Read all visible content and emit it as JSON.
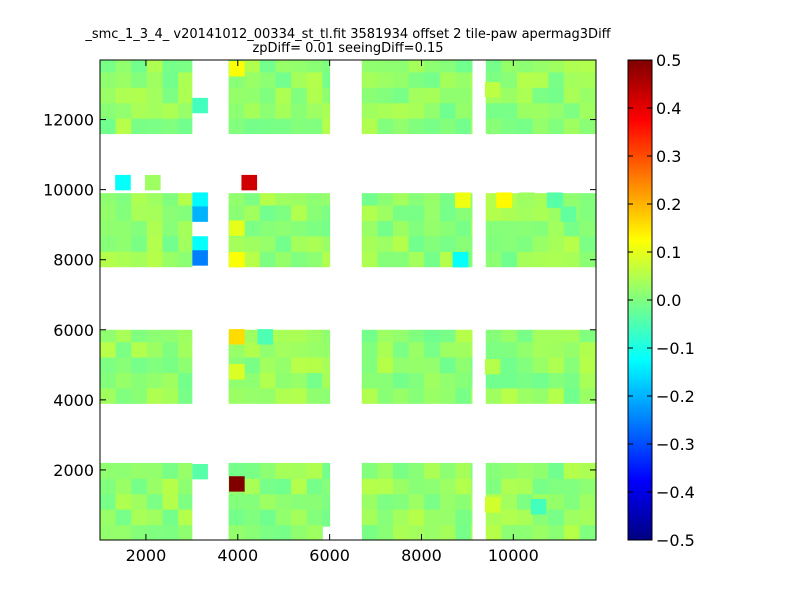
{
  "chart_data": {
    "type": "heatmap",
    "title_line1": "_smc_1_3_4_ v20141012_00334_st_tl.fit 3581934 offset 2 tile-paw apermag3Diff",
    "title_line2": "zpDiff= 0.01 seeingDiff=0.15",
    "xlim": [
      1000,
      11800
    ],
    "ylim": [
      0,
      13700
    ],
    "x_ticks": [
      2000,
      4000,
      6000,
      8000,
      10000
    ],
    "y_ticks": [
      2000,
      4000,
      6000,
      8000,
      10000,
      12000
    ],
    "colorbar": {
      "colormap": "jet",
      "range": [
        -0.5,
        0.5
      ],
      "ticks": [
        0.5,
        0.4,
        0.3,
        0.2,
        0.1,
        0.0,
        -0.1,
        -0.2,
        -0.3,
        -0.4,
        -0.5
      ],
      "tick_labels": [
        "0.5",
        "0.4",
        "0.3",
        "0.2",
        "0.1",
        "0.0",
        "−0.1",
        "−0.2",
        "−0.3",
        "−0.4",
        "−0.5"
      ]
    },
    "cell_size": [
      340,
      440
    ],
    "x_bands": [
      [
        1000,
        3000
      ],
      [
        3000,
        3360
      ],
      [
        3800,
        6000
      ],
      [
        6700,
        9100
      ],
      [
        9400,
        11800
      ]
    ],
    "y_bands": [
      [
        0,
        2200
      ],
      [
        3900,
        6000
      ],
      [
        7800,
        9900
      ],
      [
        11600,
        13700
      ]
    ],
    "special_cells": [
      {
        "x": 1500,
        "y": 10200,
        "value": -0.12
      },
      {
        "x": 2150,
        "y": 10200,
        "value": 0.03
      },
      {
        "x": 4250,
        "y": 10200,
        "value": 0.42
      },
      {
        "x": 3180,
        "y": 9700,
        "value": -0.13
      },
      {
        "x": 3180,
        "y": 9300,
        "value": -0.2
      },
      {
        "x": 3180,
        "y": 8450,
        "value": -0.12
      },
      {
        "x": 3180,
        "y": 8050,
        "value": -0.25
      },
      {
        "x": 3180,
        "y": 12400,
        "value": -0.06
      },
      {
        "x": 3180,
        "y": 1950,
        "value": -0.04
      },
      {
        "x": 3980,
        "y": 13450,
        "value": 0.12
      },
      {
        "x": 3980,
        "y": 8900,
        "value": 0.1
      },
      {
        "x": 3980,
        "y": 8000,
        "value": 0.12
      },
      {
        "x": 3980,
        "y": 5800,
        "value": 0.16
      },
      {
        "x": 3980,
        "y": 4800,
        "value": 0.09
      },
      {
        "x": 3980,
        "y": 1600,
        "value": 0.5
      },
      {
        "x": 4600,
        "y": 5800,
        "value": -0.05
      },
      {
        "x": 8900,
        "y": 9700,
        "value": 0.11
      },
      {
        "x": 9800,
        "y": 9700,
        "value": 0.13
      },
      {
        "x": 8850,
        "y": 8000,
        "value": -0.12
      },
      {
        "x": 9550,
        "y": 12850,
        "value": 0.06
      },
      {
        "x": 9550,
        "y": 4950,
        "value": 0.05
      },
      {
        "x": 9550,
        "y": 1000,
        "value": 0.08
      },
      {
        "x": 10550,
        "y": 950,
        "value": -0.06
      },
      {
        "x": 10300,
        "y": 9700,
        "value": 0.03
      },
      {
        "x": 10900,
        "y": 9700,
        "value": -0.04
      },
      {
        "x": 11200,
        "y": 9300,
        "value": -0.03
      }
    ],
    "grid": false
  }
}
